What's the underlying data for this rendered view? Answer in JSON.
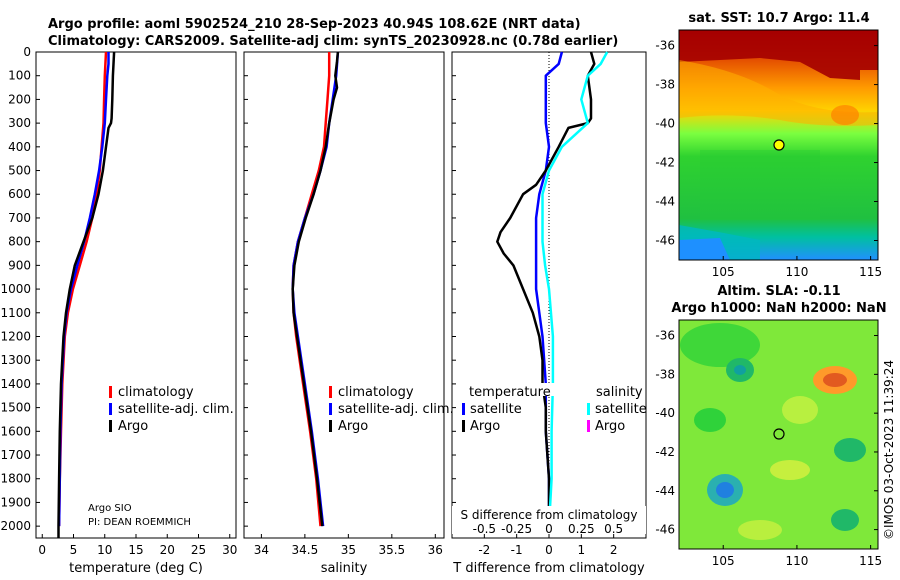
{
  "header": {
    "line1": "Argo profile: aoml 5902524_210 28-Sep-2023 40.94S 108.62E (NRT data)",
    "line2": "Climatology: CARS2009. Satellite-adj clim: synTS_20230928.nc (0.78d earlier)"
  },
  "depth_axis": {
    "ticks": [
      "0",
      "100",
      "200",
      "300",
      "400",
      "500",
      "600",
      "700",
      "800",
      "900",
      "1000",
      "1100",
      "1200",
      "1300",
      "1400",
      "1500",
      "1600",
      "1700",
      "1800",
      "1900",
      "2000"
    ]
  },
  "colors": {
    "climatology": "#ff0000",
    "satellite": "#0000ff",
    "argo": "#000000",
    "sat_s": "#00ffff",
    "argo_s": "#ff00ff"
  },
  "chart_data": [
    {
      "type": "line",
      "title": "",
      "xlabel": "temperature (deg C)",
      "ylabel": "",
      "xlim": [
        -1,
        31
      ],
      "ylim": [
        2050,
        0
      ],
      "xticks": [
        "0",
        "5",
        "10",
        "15",
        "20",
        "25",
        "30"
      ],
      "legend": [
        "climatology",
        "satellite-adj. clim.",
        "Argo"
      ],
      "annotation1": "Argo SIO",
      "annotation2": "PI: DEAN ROEMMICH",
      "series": [
        {
          "name": "climatology",
          "y": [
            0,
            50,
            100,
            200,
            300,
            400,
            500,
            600,
            700,
            800,
            900,
            1000,
            1100,
            1200,
            1400,
            1600,
            1800,
            2000
          ],
          "x": [
            10.2,
            10.1,
            10.0,
            9.9,
            9.8,
            9.5,
            9.2,
            8.7,
            8.0,
            7.1,
            6.0,
            4.9,
            4.1,
            3.6,
            3.2,
            3.0,
            2.8,
            2.7
          ]
        },
        {
          "name": "satellite-adj. clim.",
          "y": [
            0,
            50,
            100,
            200,
            300,
            400,
            500,
            600,
            700,
            800,
            900,
            1000,
            1100,
            1200,
            1400,
            1600,
            1800,
            2000
          ],
          "x": [
            10.6,
            10.6,
            10.4,
            10.2,
            10.0,
            9.6,
            9.1,
            8.4,
            7.6,
            6.7,
            5.6,
            4.6,
            3.9,
            3.5,
            3.1,
            2.9,
            2.8,
            2.7
          ]
        },
        {
          "name": "Argo",
          "y": [
            0,
            50,
            100,
            200,
            280,
            300,
            320,
            400,
            500,
            600,
            700,
            800,
            900,
            1000,
            1100,
            1200,
            1400,
            1600,
            1800,
            2000,
            2050
          ],
          "x": [
            11.5,
            11.4,
            11.3,
            11.2,
            11.1,
            11.0,
            10.6,
            10.2,
            9.7,
            9.0,
            8.0,
            6.6,
            5.2,
            4.4,
            3.8,
            3.4,
            3.0,
            2.8,
            2.7,
            2.6,
            2.6
          ]
        }
      ]
    },
    {
      "type": "line",
      "title": "",
      "xlabel": "salinity",
      "ylabel": "",
      "xlim": [
        33.8,
        36.1
      ],
      "ylim": [
        2050,
        0
      ],
      "xticks": [
        "34",
        "34.5",
        "35",
        "35.5",
        "36"
      ],
      "legend": [
        "climatology",
        "satellite-adj. clim.",
        "Argo"
      ],
      "series": [
        {
          "name": "climatology",
          "y": [
            0,
            100,
            200,
            300,
            400,
            500,
            600,
            700,
            800,
            900,
            1000,
            1100,
            1200,
            1400,
            1600,
            1800,
            2000
          ],
          "x": [
            34.78,
            34.78,
            34.76,
            34.74,
            34.72,
            34.66,
            34.58,
            34.5,
            34.42,
            34.37,
            34.36,
            34.37,
            34.4,
            34.48,
            34.56,
            34.63,
            34.68
          ]
        },
        {
          "name": "satellite-adj. clim.",
          "y": [
            0,
            100,
            200,
            300,
            400,
            500,
            600,
            700,
            800,
            900,
            1000,
            1100,
            1200,
            1400,
            1600,
            1800,
            2000
          ],
          "x": [
            34.88,
            34.86,
            34.82,
            34.78,
            34.75,
            34.68,
            34.6,
            34.5,
            34.42,
            34.37,
            34.36,
            34.38,
            34.42,
            34.5,
            34.58,
            34.65,
            34.71
          ]
        },
        {
          "name": "Argo",
          "y": [
            0,
            40,
            100,
            150,
            200,
            300,
            400,
            500,
            600,
            700,
            800,
            900,
            1000,
            1100,
            1200,
            1400,
            1600,
            1800,
            2000
          ],
          "x": [
            34.88,
            34.87,
            34.85,
            34.87,
            34.83,
            34.78,
            34.74,
            34.68,
            34.6,
            34.51,
            34.43,
            34.38,
            34.36,
            34.37,
            34.41,
            34.49,
            34.57,
            34.64,
            34.7
          ]
        }
      ]
    },
    {
      "type": "line",
      "title": "",
      "xlabel": "T difference from climatology",
      "ylabel": "",
      "xlim": [
        -3,
        3
      ],
      "ylim": [
        2050,
        0
      ],
      "xticks": [
        "-2",
        "-1",
        "0",
        "1",
        "2"
      ],
      "top_axis_label": "S difference from climatology",
      "top_ticks": [
        "-0.5",
        "-0.25",
        "0",
        "0.25",
        "0.5"
      ],
      "legend_left_title": "temperature",
      "legend_right_title": "salinity",
      "legend_left": [
        "satellite",
        "Argo"
      ],
      "legend_right": [
        "satellite",
        "Argo"
      ],
      "series": [
        {
          "name": "temperature satellite",
          "y": [
            0,
            50,
            100,
            200,
            300,
            400,
            500,
            600,
            700,
            800,
            900,
            1000,
            1100,
            1200,
            1400,
            1600,
            1800,
            2000
          ],
          "x": [
            0.4,
            0.3,
            -0.1,
            -0.1,
            -0.1,
            0.0,
            -0.1,
            -0.3,
            -0.4,
            -0.4,
            -0.4,
            -0.4,
            -0.3,
            -0.2,
            -0.1,
            -0.1,
            0.0,
            0.0
          ]
        },
        {
          "name": "temperature Argo",
          "y": [
            0,
            50,
            100,
            200,
            280,
            300,
            320,
            400,
            500,
            560,
            600,
            700,
            760,
            800,
            850,
            900,
            1000,
            1100,
            1200,
            1300,
            1400,
            1500,
            1600,
            1800,
            2000
          ],
          "x": [
            1.3,
            1.4,
            1.2,
            1.3,
            1.3,
            1.2,
            0.6,
            0.3,
            -0.1,
            -0.4,
            -0.8,
            -1.2,
            -1.5,
            -1.6,
            -1.4,
            -1.1,
            -0.8,
            -0.5,
            -0.3,
            -0.2,
            -0.2,
            -0.1,
            -0.1,
            0.0,
            0.0
          ]
        },
        {
          "name": "salinity satellite",
          "y": [
            0,
            50,
            100,
            200,
            300,
            400,
            500,
            600,
            700,
            800,
            900,
            1000,
            1200,
            1400,
            1600,
            1800,
            2000
          ],
          "x": [
            0.45,
            0.4,
            0.3,
            0.25,
            0.3,
            0.1,
            0.0,
            -0.05,
            -0.05,
            -0.05,
            -0.03,
            0.0,
            0.03,
            0.03,
            0.02,
            0.02,
            0.0
          ]
        }
      ]
    }
  ],
  "map_sst": {
    "title": "sat. SST: 10.7 Argo: 11.4",
    "lat_ticks": [
      "-36",
      "-38",
      "-40",
      "-42",
      "-44",
      "-46"
    ],
    "lon_ticks": [
      "105",
      "110",
      "115"
    ]
  },
  "map_sla": {
    "title1": "Altim. SLA: -0.11",
    "title2": "Argo h1000: NaN h2000: NaN",
    "lat_ticks": [
      "-36",
      "-38",
      "-40",
      "-42",
      "-44",
      "-46"
    ],
    "lon_ticks": [
      "105",
      "110",
      "115"
    ]
  },
  "watermark": "©IMOS 03-Oct-2023 11:39:24"
}
